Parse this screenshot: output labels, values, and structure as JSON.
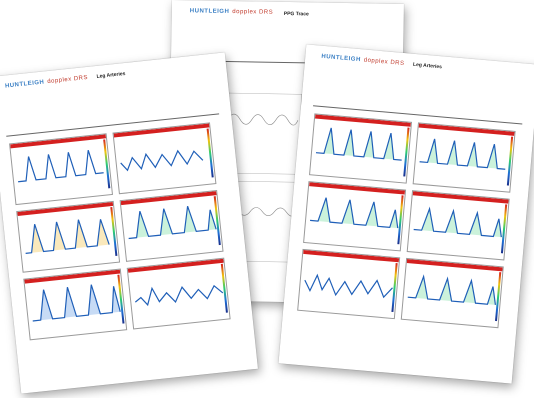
{
  "brand": {
    "logo": "HUNTLEIGH",
    "product": "dopplex DRS"
  },
  "pages": {
    "ppg": {
      "title": "PPG Trace"
    },
    "left": {
      "title": "Leg Arteries"
    },
    "right": {
      "title": "Leg Arteries"
    }
  },
  "colors": {
    "accent_red": "#d4201f",
    "brand_blue": "#3a7fc4"
  }
}
